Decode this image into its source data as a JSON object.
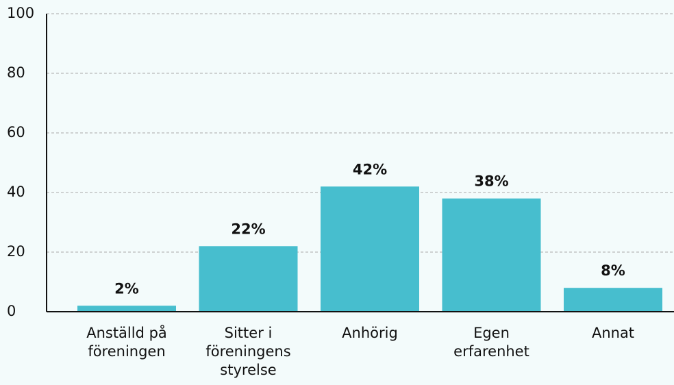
{
  "chart_data": {
    "type": "bar",
    "categories": [
      "Anställd på föreningen",
      "Sitter i föreningens styrelse",
      "Anhörig",
      "Egen erfarenhet",
      "Annat"
    ],
    "values": [
      2,
      22,
      42,
      38,
      8
    ],
    "value_labels": [
      "2%",
      "22%",
      "42%",
      "38%",
      "8%"
    ],
    "color": "#47bece",
    "ylim": [
      0,
      100
    ],
    "yticks": [
      0,
      20,
      40,
      60,
      80,
      100
    ],
    "grid": true
  }
}
